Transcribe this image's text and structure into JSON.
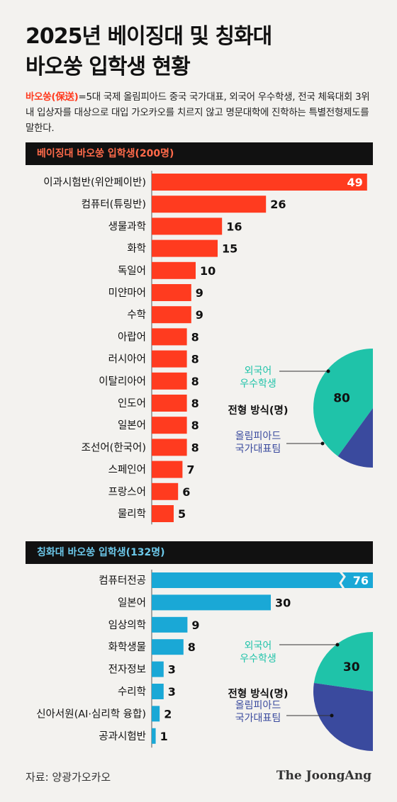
{
  "title_line1": "2025년 베이징대 및 칭화대",
  "title_line2": "바오쑹 입학생 현황",
  "description_term": "바오쑹(保送)",
  "description_rest": "=5대 국제 올림피아드 중국 국가대표, 외국어 우수학생, 전국 체육대회 3위내 입상자를 대상으로 대입 가오카오를 치르지 않고 명문대학에 진학하는 특별전형제도를 말한다.",
  "chart_data": [
    {
      "type": "bar",
      "title": "베이징대 바오쑹 입학생(200명)",
      "categories": [
        "이과시험반(위안페이반)",
        "컴퓨터(튜링반)",
        "생물과학",
        "화학",
        "독일어",
        "미얀마어",
        "수학",
        "아랍어",
        "러시아어",
        "이탈리아어",
        "인도어",
        "일본어",
        "조선어(한국어)",
        "스페인어",
        "프랑스어",
        "물리학"
      ],
      "values": [
        49,
        26,
        16,
        15,
        10,
        9,
        9,
        8,
        8,
        8,
        8,
        8,
        8,
        7,
        6,
        5
      ],
      "color": "#ff3b1f"
    },
    {
      "type": "pie",
      "title": "전형 방식(명)",
      "labels": [
        "외국어 우수학생",
        "올림피아드 국가대표팀"
      ],
      "values": [
        80,
        120
      ],
      "colors": [
        "#1fc3a9",
        "#3a4a9e"
      ]
    },
    {
      "type": "bar",
      "title": "칭화대 바오쑹 입학생(132명)",
      "categories": [
        "컴퓨터전공",
        "일본어",
        "임상의학",
        "화학생물",
        "전자정보",
        "수리학",
        "신아서원(AI·심리학 융합)",
        "공과시험반"
      ],
      "values": [
        76,
        30,
        9,
        8,
        3,
        3,
        2,
        1
      ],
      "color": "#1aa8d6",
      "axis_break": true
    },
    {
      "type": "pie",
      "title": "전형 방식(명)",
      "labels": [
        "외국어 우수학생",
        "올림피아드 국가대표팀"
      ],
      "values": [
        30,
        102
      ],
      "colors": [
        "#1fc3a9",
        "#3a4a9e"
      ]
    }
  ],
  "source": "자료: 양광가오카오",
  "logo": "The JoongAng"
}
